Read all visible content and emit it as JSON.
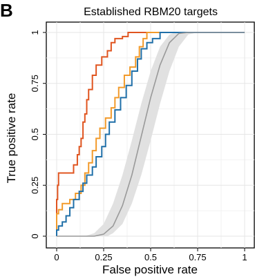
{
  "panel_label": "B",
  "chart_data": {
    "type": "line",
    "title": "Established RBM20 targets",
    "xlabel": "False positive rate",
    "ylabel": "True positive rate",
    "xlim": [
      0,
      1
    ],
    "ylim": [
      0,
      1
    ],
    "x_ticks": [
      "0",
      "0.25",
      "0.5",
      "0.75",
      "1"
    ],
    "y_ticks": [
      "0",
      "0.25",
      "0.5",
      "0.75",
      "1"
    ],
    "grid": true,
    "legend": "none",
    "series": [
      {
        "color": "#e0541f",
        "step": true,
        "points": [
          [
            0,
            0
          ],
          [
            0,
            0.18
          ],
          [
            0.005,
            0.25
          ],
          [
            0.01,
            0.31
          ],
          [
            0.07,
            0.31
          ],
          [
            0.09,
            0.35
          ],
          [
            0.11,
            0.4
          ],
          [
            0.12,
            0.44
          ],
          [
            0.13,
            0.48
          ],
          [
            0.14,
            0.56
          ],
          [
            0.15,
            0.6
          ],
          [
            0.16,
            0.67
          ],
          [
            0.17,
            0.72
          ],
          [
            0.19,
            0.79
          ],
          [
            0.21,
            0.84
          ],
          [
            0.24,
            0.88
          ],
          [
            0.27,
            0.91
          ],
          [
            0.29,
            0.95
          ],
          [
            0.31,
            0.97
          ],
          [
            0.35,
            0.98
          ],
          [
            0.38,
            1.0
          ],
          [
            1,
            1.0
          ]
        ]
      },
      {
        "color": "#f29a2a",
        "step": true,
        "points": [
          [
            0,
            0
          ],
          [
            0,
            0.11
          ],
          [
            0.01,
            0.13
          ],
          [
            0.03,
            0.16
          ],
          [
            0.07,
            0.18
          ],
          [
            0.1,
            0.21
          ],
          [
            0.13,
            0.25
          ],
          [
            0.15,
            0.31
          ],
          [
            0.17,
            0.36
          ],
          [
            0.19,
            0.42
          ],
          [
            0.21,
            0.48
          ],
          [
            0.23,
            0.53
          ],
          [
            0.26,
            0.58
          ],
          [
            0.29,
            0.63
          ],
          [
            0.31,
            0.68
          ],
          [
            0.33,
            0.73
          ],
          [
            0.36,
            0.79
          ],
          [
            0.39,
            0.83
          ],
          [
            0.42,
            0.88
          ],
          [
            0.44,
            0.93
          ],
          [
            0.46,
            0.97
          ],
          [
            0.48,
            1.0
          ],
          [
            1,
            1.0
          ]
        ]
      },
      {
        "color": "#1f6fa8",
        "step": true,
        "points": [
          [
            0,
            0
          ],
          [
            0,
            0.03
          ],
          [
            0.01,
            0.05
          ],
          [
            0.03,
            0.07
          ],
          [
            0.05,
            0.1
          ],
          [
            0.07,
            0.14
          ],
          [
            0.09,
            0.18
          ],
          [
            0.12,
            0.22
          ],
          [
            0.14,
            0.26
          ],
          [
            0.16,
            0.3
          ],
          [
            0.19,
            0.34
          ],
          [
            0.21,
            0.39
          ],
          [
            0.24,
            0.44
          ],
          [
            0.26,
            0.5
          ],
          [
            0.28,
            0.56
          ],
          [
            0.31,
            0.62
          ],
          [
            0.34,
            0.68
          ],
          [
            0.37,
            0.74
          ],
          [
            0.4,
            0.81
          ],
          [
            0.43,
            0.87
          ],
          [
            0.45,
            0.92
          ],
          [
            0.48,
            0.95
          ],
          [
            0.51,
            0.97
          ],
          [
            0.55,
            1.0
          ],
          [
            1,
            1.0
          ]
        ]
      },
      {
        "color": "#999999",
        "step": false,
        "points": [
          [
            0,
            0
          ],
          [
            0.2,
            0
          ],
          [
            0.25,
            0.01
          ],
          [
            0.3,
            0.05
          ],
          [
            0.35,
            0.15
          ],
          [
            0.4,
            0.3
          ],
          [
            0.45,
            0.49
          ],
          [
            0.5,
            0.68
          ],
          [
            0.55,
            0.84
          ],
          [
            0.6,
            0.95
          ],
          [
            0.65,
            0.995
          ],
          [
            0.7,
            1.0
          ],
          [
            1,
            1.0
          ]
        ],
        "band_lower": [
          [
            0,
            0
          ],
          [
            0.27,
            0
          ],
          [
            0.3,
            0.015
          ],
          [
            0.35,
            0.06
          ],
          [
            0.4,
            0.16
          ],
          [
            0.45,
            0.3
          ],
          [
            0.5,
            0.47
          ],
          [
            0.55,
            0.65
          ],
          [
            0.6,
            0.81
          ],
          [
            0.65,
            0.93
          ],
          [
            0.7,
            0.99
          ],
          [
            0.75,
            1.0
          ],
          [
            1,
            1.0
          ]
        ],
        "band_upper": [
          [
            0,
            0
          ],
          [
            0.15,
            0
          ],
          [
            0.2,
            0.015
          ],
          [
            0.25,
            0.06
          ],
          [
            0.3,
            0.16
          ],
          [
            0.35,
            0.3
          ],
          [
            0.4,
            0.47
          ],
          [
            0.45,
            0.65
          ],
          [
            0.5,
            0.81
          ],
          [
            0.55,
            0.93
          ],
          [
            0.6,
            0.99
          ],
          [
            0.63,
            1.0
          ],
          [
            1,
            1.0
          ]
        ],
        "band_color": "#e1e1e1"
      }
    ]
  }
}
